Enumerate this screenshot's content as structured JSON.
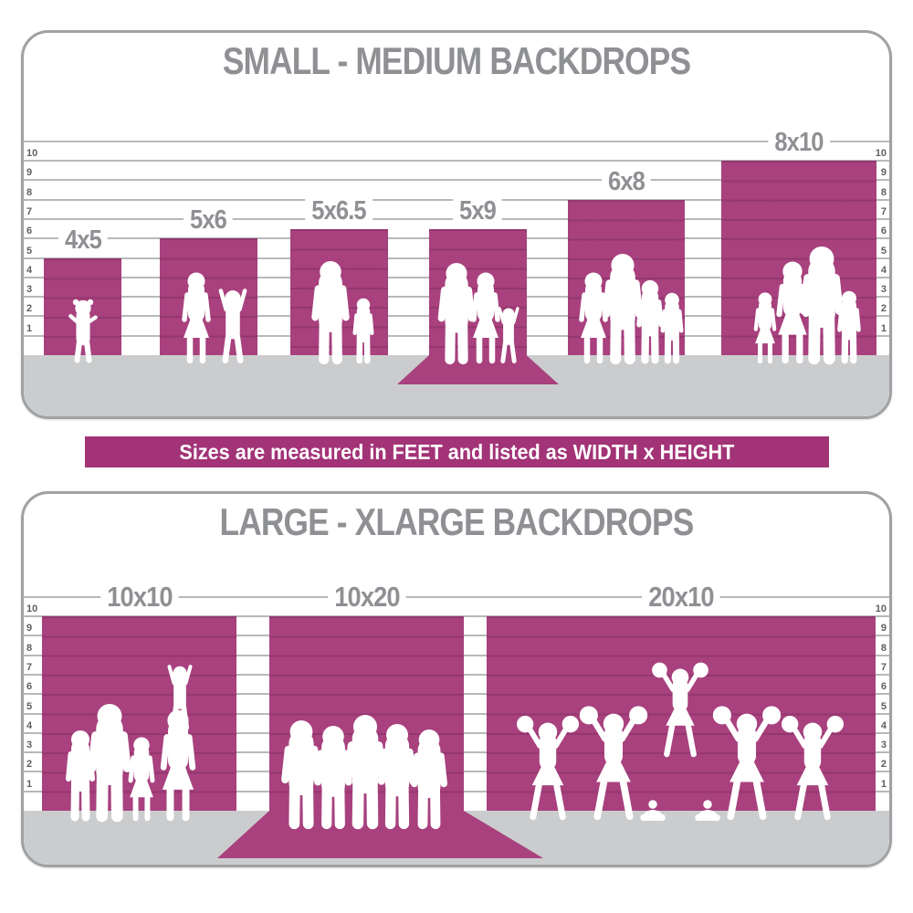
{
  "banner": {
    "text": "Sizes are measured in FEET and listed as WIDTH x HEIGHT"
  },
  "colors": {
    "backdrop_magenta": "#a8417e",
    "banner_magenta": "#a23377",
    "floor_gray": "#cbccce",
    "gridline_gray": "#b7b8bb",
    "panel_border_gray": "#9fa1a4",
    "heading_gray": "#8e9093",
    "tick_gray": "#5d5f62",
    "silhouette_white": "#ffffff"
  },
  "chart_data": [
    {
      "type": "bar",
      "title": "SMALL - MEDIUM BACKDROPS",
      "ylabel": "feet",
      "unit": "feet",
      "axis": {
        "min": 0,
        "max": 10,
        "ticks": [
          1,
          2,
          3,
          4,
          5,
          6,
          7,
          8,
          9,
          10
        ],
        "tick_sides": "left and right",
        "grid": true
      },
      "bars": [
        {
          "label": "4x5",
          "width_ft": 4,
          "height_ft": 5,
          "wall_ft": 5,
          "floor_sweep": false,
          "people": [
            "toddler-girl"
          ]
        },
        {
          "label": "5x6",
          "width_ft": 5,
          "height_ft": 6,
          "wall_ft": 6,
          "floor_sweep": false,
          "people": [
            "woman",
            "cheering-child"
          ]
        },
        {
          "label": "5x6.5",
          "width_ft": 5,
          "height_ft": 6.5,
          "wall_ft": 6.5,
          "floor_sweep": false,
          "people": [
            "man",
            "boy"
          ]
        },
        {
          "label": "5x9",
          "width_ft": 5,
          "height_ft": 9,
          "wall_ft": 6.5,
          "floor_sweep": true,
          "people": [
            "man",
            "woman",
            "cheering-child"
          ]
        },
        {
          "label": "6x8",
          "width_ft": 6,
          "height_ft": 8,
          "wall_ft": 8,
          "floor_sweep": false,
          "people": [
            "woman",
            "man",
            "boy",
            "boy"
          ]
        },
        {
          "label": "8x10",
          "width_ft": 8,
          "height_ft": 10,
          "wall_ft": 10,
          "floor_sweep": false,
          "people": [
            "girl",
            "woman",
            "man",
            "boy"
          ]
        }
      ]
    },
    {
      "type": "bar",
      "title": "LARGE - XLARGE BACKDROPS",
      "ylabel": "feet",
      "unit": "feet",
      "axis": {
        "min": 0,
        "max": 10,
        "ticks": [
          1,
          2,
          3,
          4,
          5,
          6,
          7,
          8,
          9,
          10
        ],
        "tick_sides": "left and right",
        "grid": true
      },
      "bars": [
        {
          "label": "10x10",
          "width_ft": 10,
          "height_ft": 10,
          "wall_ft": 10,
          "floor_sweep": false,
          "people": [
            "boy",
            "man",
            "girl",
            "woman",
            "child-on-shoulders"
          ]
        },
        {
          "label": "10x20",
          "width_ft": 10,
          "height_ft": 20,
          "wall_ft": 10,
          "floor_sweep": true,
          "people": [
            "man",
            "man",
            "man",
            "man",
            "man"
          ]
        },
        {
          "label": "20x10",
          "width_ft": 20,
          "height_ft": 10,
          "wall_ft": 10,
          "floor_sweep": false,
          "people": [
            "cheerleader",
            "cheerleader",
            "flyer-cheerleader",
            "cheerleader",
            "cheerleader",
            "kneeling-base",
            "kneeling-base"
          ]
        }
      ]
    }
  ]
}
